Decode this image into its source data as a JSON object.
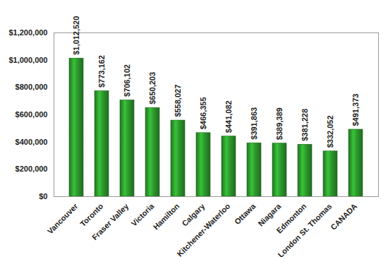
{
  "chart_data": {
    "type": "bar",
    "categories": [
      "Vancouver",
      "Toronto",
      "Fraser Valley",
      "Victoria",
      "Hamilton",
      "Calgary",
      "Kitchener-Waterloo",
      "Ottawa",
      "Niagara",
      "Edmonton",
      "London St. Thomas",
      "CANADA"
    ],
    "values": [
      1012520,
      773162,
      706102,
      650203,
      558027,
      466355,
      441082,
      391863,
      389389,
      381228,
      332052,
      491373
    ],
    "value_labels": [
      "$1,012,520",
      "$773,162",
      "$706,102",
      "$650,203",
      "$558,027",
      "$466,355",
      "$441,082",
      "$391,863",
      "$389,389",
      "$381,228",
      "$332,052",
      "$491,373"
    ],
    "color": "#2e9e2e",
    "ylim": [
      0,
      1200000
    ],
    "yticks": [
      {
        "value": 0,
        "label": "$0"
      },
      {
        "value": 200000,
        "label": "$200,000"
      },
      {
        "value": 400000,
        "label": "$400,000"
      },
      {
        "value": 600000,
        "label": "$600,000"
      },
      {
        "value": 800000,
        "label": "$800,000"
      },
      {
        "value": 1000000,
        "label": "$1,000,000"
      },
      {
        "value": 1200000,
        "label": "$1,200,000"
      }
    ],
    "grid": false,
    "data_labels": true
  }
}
